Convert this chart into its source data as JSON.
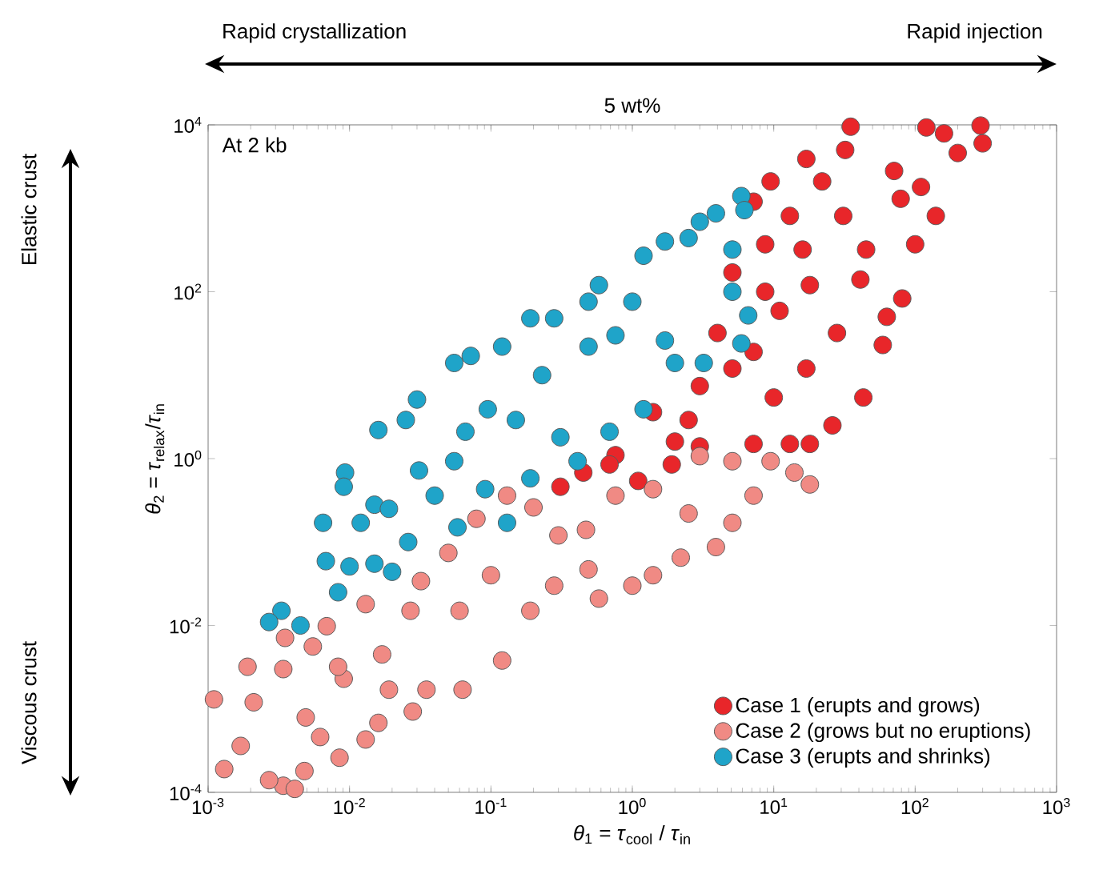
{
  "chart_data": {
    "type": "scatter",
    "title": "5 wt%",
    "xlabel": "*θ*$_{1}$ = *τ*$_{cool}$ / *τ*$_{in}$",
    "ylabel": "*θ*$_{2}$ = *τ*$_{relax}$/*τ*$_{in}$",
    "annotations": [
      "At 2 kb",
      "Rapid crystallization",
      "Rapid injection",
      "Elastic crust",
      "Viscous crust"
    ],
    "log": "xy",
    "marker": "circle",
    "legend": "bottom right",
    "xlim": [
      0.001,
      1000
    ],
    "ylim": [
      0.0001,
      10000
    ],
    "xticks": [
      {
        "value": 0.001,
        "label": "10$^{-3}$"
      },
      {
        "value": 0.01,
        "label": "10$^{-2}$"
      },
      {
        "value": 0.1,
        "label": "10$^{-1}$"
      },
      {
        "value": 1,
        "label": "10$^{0}$"
      },
      {
        "value": 10,
        "label": "10$^{1}$"
      },
      {
        "value": 100,
        "label": "10$^{2}$"
      },
      {
        "value": 1000,
        "label": "10$^{3}$"
      }
    ],
    "yticks": [
      {
        "value": 0.0001,
        "label": "10$^{-4}$"
      },
      {
        "value": 0.01,
        "label": "10$^{-2}$"
      },
      {
        "value": 1,
        "label": "10$^{0}$"
      },
      {
        "value": 100,
        "label": "10$^{2}$"
      },
      {
        "value": 10000,
        "label": "10$^{4}$"
      }
    ],
    "series": [
      {
        "name": "Case 1 (erupts and grows)",
        "color": "#e8262a",
        "x": [
          290,
          300,
          35,
          120,
          17,
          9.5,
          7.2,
          71,
          200,
          140,
          8.7,
          45,
          100,
          8.7,
          18,
          81,
          41,
          11,
          28,
          63,
          7.2,
          17,
          43,
          5.1,
          10,
          3.0,
          2.5,
          1.4,
          0.76,
          26,
          7.2,
          0.31,
          0.69,
          1.1,
          1.9,
          3.0,
          13,
          18,
          0.45,
          110,
          31,
          13,
          59,
          5.1,
          22,
          32,
          160,
          79,
          16,
          4.0,
          2.0
        ],
        "values": [
          9800,
          6000,
          9500,
          9300,
          3900,
          2100,
          1200,
          2800,
          4600,
          810,
          370,
          320,
          370,
          100,
          120,
          83,
          140,
          59,
          32,
          50,
          19,
          12,
          5.4,
          12,
          5.4,
          7.4,
          2.9,
          3.6,
          1.1,
          2.5,
          1.5,
          0.46,
          0.85,
          0.54,
          0.85,
          1.4,
          1.5,
          1.5,
          0.68,
          1800,
          810,
          810,
          23,
          170,
          2100,
          5000,
          7900,
          1300,
          320,
          32,
          1.6
        ]
      },
      {
        "name": "Case 2 (grows but no eruptions)",
        "color": "#f08a84",
        "x": [
          0.0011,
          0.0013,
          0.0017,
          0.0034,
          0.0041,
          0.0027,
          0.0048,
          0.0019,
          0.0034,
          0.0021,
          0.0035,
          0.0055,
          0.0049,
          0.0085,
          0.0062,
          0.013,
          0.016,
          0.0091,
          0.0069,
          0.013,
          0.017,
          0.028,
          0.035,
          0.063,
          0.12,
          0.032,
          0.06,
          0.1,
          0.19,
          0.28,
          0.49,
          0.58,
          1.0,
          1.4,
          2.2,
          3.9,
          5.1,
          7.2,
          14,
          18,
          9.5,
          0.13,
          0.2,
          0.3,
          0.47,
          0.76,
          1.4,
          2.5,
          3.0,
          5.1,
          0.027,
          0.019,
          0.0083,
          0.05,
          0.079
        ],
        "values": [
          0.0013,
          0.00019,
          0.00036,
          0.00012,
          0.00011,
          0.00014,
          0.00018,
          0.0032,
          0.003,
          0.0012,
          0.0071,
          0.0056,
          0.00079,
          0.00026,
          0.00046,
          0.00043,
          0.00068,
          0.0023,
          0.0098,
          0.018,
          0.0045,
          0.00093,
          0.0017,
          0.0017,
          0.0038,
          0.034,
          0.015,
          0.04,
          0.015,
          0.03,
          0.047,
          0.021,
          0.03,
          0.04,
          0.065,
          0.087,
          0.17,
          0.36,
          0.68,
          0.49,
          0.93,
          0.36,
          0.26,
          0.12,
          0.14,
          0.36,
          0.43,
          0.22,
          1.07,
          0.93,
          0.015,
          0.0017,
          0.0032,
          0.074,
          0.19
        ]
      },
      {
        "name": "Case 3 (erupts and shrinks)",
        "color": "#1fa4c9",
        "x": [
          5.9,
          3.9,
          1.7,
          3.0,
          5.1,
          5.1,
          6.6,
          5.9,
          1.2,
          0.58,
          0.49,
          0.28,
          0.19,
          0.12,
          0.055,
          0.072,
          1.7,
          2.0,
          3.2,
          0.76,
          0.49,
          0.23,
          0.095,
          0.03,
          0.025,
          0.016,
          0.066,
          0.15,
          0.31,
          0.69,
          1.2,
          6.2,
          2.5,
          1.0,
          0.0093,
          0.0091,
          0.0065,
          0.012,
          0.0068,
          0.01,
          0.0083,
          0.0033,
          0.0027,
          0.0045,
          0.015,
          0.019,
          0.031,
          0.015,
          0.02,
          0.026,
          0.04,
          0.055,
          0.091,
          0.13,
          0.19,
          0.41,
          0.058
        ],
        "values": [
          1400,
          870,
          400,
          690,
          320,
          100,
          52,
          24,
          270,
          120,
          76,
          48,
          48,
          22,
          14,
          17,
          26,
          14,
          14,
          30,
          22,
          10,
          3.9,
          5.1,
          2.9,
          2.2,
          2.1,
          2.9,
          1.8,
          2.1,
          3.9,
          950,
          440,
          76,
          0.68,
          0.46,
          0.17,
          0.17,
          0.059,
          0.051,
          0.025,
          0.015,
          0.011,
          0.01,
          0.28,
          0.25,
          0.72,
          0.055,
          0.044,
          0.1,
          0.36,
          0.93,
          0.43,
          0.17,
          0.58,
          0.93,
          0.15
        ]
      }
    ]
  }
}
